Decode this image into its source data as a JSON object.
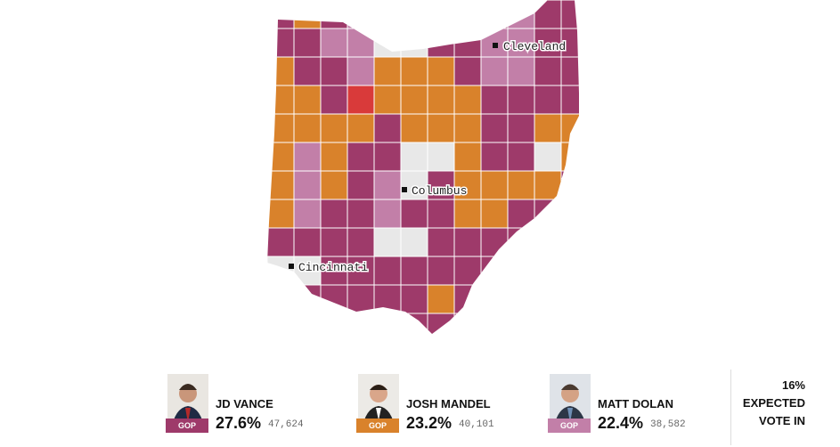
{
  "map": {
    "cities": [
      "Cleveland",
      "Columbus",
      "Cincinnati"
    ]
  },
  "candidates": [
    {
      "name": "JD VANCE",
      "party": "GOP",
      "percent": "27.6%",
      "votes": "47,624"
    },
    {
      "name": "JOSH MANDEL",
      "party": "GOP",
      "percent": "23.2%",
      "votes": "40,101"
    },
    {
      "name": "MATT DOLAN",
      "party": "GOP",
      "percent": "22.4%",
      "votes": "38,582"
    }
  ],
  "reporting": {
    "percent": "16%",
    "label": "EXPECTED VOTE IN"
  }
}
